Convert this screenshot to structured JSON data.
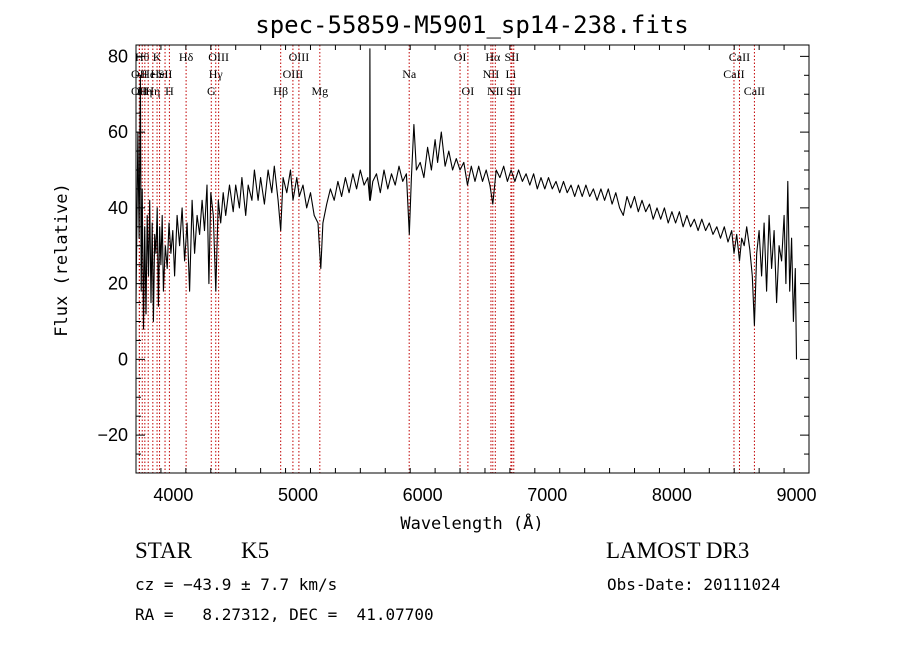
{
  "chart_data": {
    "type": "line",
    "title": "spec-55859-M5901_sp14-238.fits",
    "xlabel": "Wavelength (Å)",
    "ylabel": "Flux (relative)",
    "xlim": [
      3700,
      9100
    ],
    "ylim": [
      -30,
      83
    ],
    "xticks": [
      4000,
      5000,
      6000,
      7000,
      8000,
      9000
    ],
    "yticks": [
      -20,
      0,
      20,
      40,
      60,
      80
    ],
    "grid": false,
    "series": [
      {
        "name": "spectrum",
        "points": [
          [
            3700,
            15
          ],
          [
            3715,
            60
          ],
          [
            3725,
            32
          ],
          [
            3735,
            75
          ],
          [
            3742,
            18
          ],
          [
            3750,
            45
          ],
          [
            3760,
            8
          ],
          [
            3770,
            35
          ],
          [
            3780,
            12
          ],
          [
            3790,
            38
          ],
          [
            3800,
            22
          ],
          [
            3810,
            42
          ],
          [
            3820,
            15
          ],
          [
            3830,
            36
          ],
          [
            3840,
            10
          ],
          [
            3850,
            33
          ],
          [
            3860,
            28
          ],
          [
            3870,
            40
          ],
          [
            3880,
            14
          ],
          [
            3890,
            35
          ],
          [
            3900,
            25
          ],
          [
            3910,
            38
          ],
          [
            3920,
            18
          ],
          [
            3935,
            30
          ],
          [
            3950,
            24
          ],
          [
            3965,
            36
          ],
          [
            3980,
            28
          ],
          [
            3995,
            34
          ],
          [
            4010,
            22
          ],
          [
            4030,
            38
          ],
          [
            4050,
            30
          ],
          [
            4070,
            40
          ],
          [
            4090,
            26
          ],
          [
            4110,
            36
          ],
          [
            4130,
            18
          ],
          [
            4150,
            42
          ],
          [
            4170,
            28
          ],
          [
            4190,
            38
          ],
          [
            4210,
            33
          ],
          [
            4230,
            42
          ],
          [
            4250,
            34
          ],
          [
            4270,
            46
          ],
          [
            4285,
            20
          ],
          [
            4300,
            44
          ],
          [
            4320,
            38
          ],
          [
            4340,
            18
          ],
          [
            4360,
            42
          ],
          [
            4380,
            36
          ],
          [
            4400,
            44
          ],
          [
            4420,
            38
          ],
          [
            4450,
            46
          ],
          [
            4480,
            39
          ],
          [
            4500,
            46
          ],
          [
            4530,
            40
          ],
          [
            4550,
            48
          ],
          [
            4580,
            38
          ],
          [
            4600,
            46
          ],
          [
            4630,
            42
          ],
          [
            4650,
            50
          ],
          [
            4680,
            42
          ],
          [
            4700,
            48
          ],
          [
            4730,
            41
          ],
          [
            4760,
            50
          ],
          [
            4790,
            44
          ],
          [
            4810,
            51
          ],
          [
            4840,
            42
          ],
          [
            4861,
            34
          ],
          [
            4880,
            48
          ],
          [
            4910,
            44
          ],
          [
            4940,
            50
          ],
          [
            4960,
            42
          ],
          [
            4990,
            48
          ],
          [
            5010,
            43
          ],
          [
            5040,
            46
          ],
          [
            5070,
            40
          ],
          [
            5100,
            44
          ],
          [
            5130,
            38
          ],
          [
            5160,
            36
          ],
          [
            5175,
            28
          ],
          [
            5183,
            24
          ],
          [
            5200,
            36
          ],
          [
            5230,
            41
          ],
          [
            5260,
            45
          ],
          [
            5290,
            42
          ],
          [
            5320,
            47
          ],
          [
            5350,
            43
          ],
          [
            5380,
            48
          ],
          [
            5410,
            44
          ],
          [
            5440,
            49
          ],
          [
            5470,
            45
          ],
          [
            5500,
            50
          ],
          [
            5530,
            46
          ],
          [
            5560,
            48
          ],
          [
            5575,
            42
          ],
          [
            5577,
            82
          ],
          [
            5580,
            42
          ],
          [
            5600,
            47
          ],
          [
            5630,
            49
          ],
          [
            5660,
            44
          ],
          [
            5690,
            50
          ],
          [
            5720,
            45
          ],
          [
            5750,
            49
          ],
          [
            5780,
            46
          ],
          [
            5810,
            51
          ],
          [
            5840,
            47
          ],
          [
            5870,
            49
          ],
          [
            5893,
            33
          ],
          [
            5910,
            48
          ],
          [
            5930,
            62
          ],
          [
            5950,
            50
          ],
          [
            5980,
            52
          ],
          [
            6010,
            48
          ],
          [
            6040,
            56
          ],
          [
            6070,
            50
          ],
          [
            6100,
            58
          ],
          [
            6120,
            52
          ],
          [
            6150,
            60
          ],
          [
            6180,
            51
          ],
          [
            6210,
            55
          ],
          [
            6240,
            50
          ],
          [
            6270,
            53
          ],
          [
            6300,
            50
          ],
          [
            6330,
            52
          ],
          [
            6360,
            46
          ],
          [
            6390,
            51
          ],
          [
            6420,
            47
          ],
          [
            6450,
            51
          ],
          [
            6480,
            47
          ],
          [
            6510,
            50
          ],
          [
            6540,
            46
          ],
          [
            6563,
            41
          ],
          [
            6590,
            50
          ],
          [
            6620,
            48
          ],
          [
            6650,
            51
          ],
          [
            6680,
            47
          ],
          [
            6710,
            50
          ],
          [
            6740,
            47
          ],
          [
            6770,
            50
          ],
          [
            6800,
            47
          ],
          [
            6830,
            49
          ],
          [
            6860,
            46
          ],
          [
            6890,
            49
          ],
          [
            6920,
            45
          ],
          [
            6950,
            48
          ],
          [
            6980,
            45
          ],
          [
            7010,
            48
          ],
          [
            7040,
            45
          ],
          [
            7070,
            47
          ],
          [
            7100,
            44
          ],
          [
            7130,
            47
          ],
          [
            7160,
            44
          ],
          [
            7190,
            46
          ],
          [
            7220,
            43
          ],
          [
            7250,
            46
          ],
          [
            7280,
            43
          ],
          [
            7310,
            46
          ],
          [
            7340,
            43
          ],
          [
            7370,
            45
          ],
          [
            7400,
            42
          ],
          [
            7430,
            45
          ],
          [
            7460,
            42
          ],
          [
            7490,
            45
          ],
          [
            7520,
            41
          ],
          [
            7550,
            44
          ],
          [
            7580,
            40
          ],
          [
            7610,
            38
          ],
          [
            7640,
            43
          ],
          [
            7670,
            40
          ],
          [
            7700,
            43
          ],
          [
            7730,
            39
          ],
          [
            7760,
            42
          ],
          [
            7790,
            39
          ],
          [
            7820,
            41
          ],
          [
            7850,
            37
          ],
          [
            7880,
            40
          ],
          [
            7910,
            37
          ],
          [
            7940,
            40
          ],
          [
            7970,
            36
          ],
          [
            8000,
            39
          ],
          [
            8030,
            36
          ],
          [
            8060,
            39
          ],
          [
            8090,
            35
          ],
          [
            8120,
            38
          ],
          [
            8150,
            35
          ],
          [
            8180,
            37
          ],
          [
            8210,
            34
          ],
          [
            8240,
            37
          ],
          [
            8270,
            34
          ],
          [
            8300,
            36
          ],
          [
            8330,
            33
          ],
          [
            8360,
            35
          ],
          [
            8390,
            32
          ],
          [
            8420,
            35
          ],
          [
            8450,
            31
          ],
          [
            8480,
            34
          ],
          [
            8498,
            28
          ],
          [
            8520,
            33
          ],
          [
            8542,
            26
          ],
          [
            8560,
            32
          ],
          [
            8580,
            30
          ],
          [
            8600,
            35
          ],
          [
            8625,
            29
          ],
          [
            8645,
            22
          ],
          [
            8662,
            9
          ],
          [
            8680,
            28
          ],
          [
            8700,
            34
          ],
          [
            8720,
            22
          ],
          [
            8740,
            36
          ],
          [
            8760,
            18
          ],
          [
            8780,
            38
          ],
          [
            8800,
            24
          ],
          [
            8820,
            34
          ],
          [
            8840,
            15
          ],
          [
            8860,
            30
          ],
          [
            8880,
            26
          ],
          [
            8900,
            38
          ],
          [
            8915,
            20
          ],
          [
            8930,
            47
          ],
          [
            8945,
            18
          ],
          [
            8960,
            32
          ],
          [
            8975,
            10
          ],
          [
            8990,
            24
          ],
          [
            9000,
            0
          ]
        ]
      }
    ],
    "lines": [
      {
        "wl": 3727,
        "label": "OII",
        "row": 2
      },
      {
        "wl": 3727,
        "label": "OII",
        "row": 3
      },
      {
        "wl": 3750,
        "label": "Hθ",
        "row": 1
      },
      {
        "wl": 3771,
        "label": "Hη",
        "row": 3
      },
      {
        "wl": 3798,
        "label": "He",
        "row": 2
      },
      {
        "wl": 3835,
        "label": "Hη",
        "row": 3
      },
      {
        "wl": 3869,
        "label": "K",
        "row": 1
      },
      {
        "wl": 3889,
        "label": "HeI",
        "row": 2
      },
      {
        "wl": 3933,
        "label": "SII",
        "row": 2
      },
      {
        "wl": 3968,
        "label": "H",
        "row": 3
      },
      {
        "wl": 4102,
        "label": "Hδ",
        "row": 1
      },
      {
        "wl": 4304,
        "label": "G",
        "row": 3
      },
      {
        "wl": 4340,
        "label": "Hγ",
        "row": 2
      },
      {
        "wl": 4363,
        "label": "OIII",
        "row": 1
      },
      {
        "wl": 4861,
        "label": "Hβ",
        "row": 3
      },
      {
        "wl": 4959,
        "label": "OIII",
        "row": 2
      },
      {
        "wl": 5007,
        "label": "OIII",
        "row": 1
      },
      {
        "wl": 5175,
        "label": "Mg",
        "row": 3
      },
      {
        "wl": 5892,
        "label": "Na",
        "row": 2
      },
      {
        "wl": 6300,
        "label": "OI",
        "row": 1
      },
      {
        "wl": 6363,
        "label": "OI",
        "row": 3
      },
      {
        "wl": 6548,
        "label": "NII",
        "row": 2
      },
      {
        "wl": 6563,
        "label": "Hα",
        "row": 1
      },
      {
        "wl": 6583,
        "label": "NII",
        "row": 3
      },
      {
        "wl": 6708,
        "label": "Li",
        "row": 2
      },
      {
        "wl": 6716,
        "label": "SII",
        "row": 1
      },
      {
        "wl": 6731,
        "label": "SII",
        "row": 3
      },
      {
        "wl": 8498,
        "label": "CaII",
        "row": 2
      },
      {
        "wl": 8542,
        "label": "CaII",
        "row": 1
      },
      {
        "wl": 8662,
        "label": "CaII",
        "row": 3
      }
    ]
  },
  "info": {
    "class_label": "STAR",
    "subclass": "K5",
    "cz": "cz = −43.9 ± 7.7 km/s",
    "radec": "RA =   8.27312, DEC =  41.07700",
    "survey": "LAMOST DR3",
    "obs_date": "Obs-Date: 20111024"
  },
  "colors": {
    "line_marker": "#c00000",
    "spectrum": "#000000"
  }
}
